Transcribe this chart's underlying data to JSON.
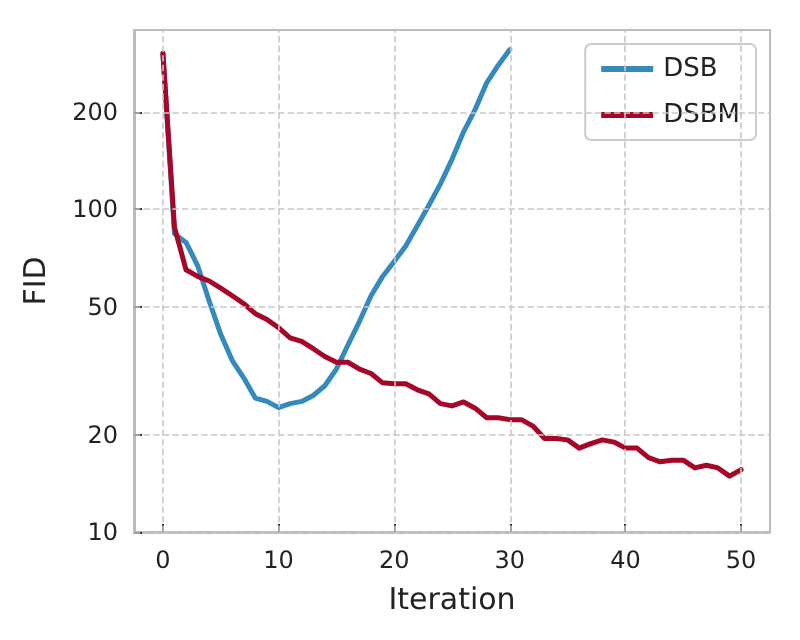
{
  "chart_data": {
    "type": "line",
    "xlabel": "Iteration",
    "ylabel": "FID",
    "log": "y",
    "grid": true,
    "legend": "top right",
    "line_style": "solid",
    "marker": "none",
    "xlim": [
      -2.5,
      52.5
    ],
    "xticks": [
      0,
      10,
      20,
      30,
      40,
      50
    ],
    "ylim": [
      10,
      360
    ],
    "yticks": [
      10,
      20,
      50,
      100,
      200
    ],
    "series": [
      {
        "name": "DSB",
        "color": "#348abd",
        "x": [
          0,
          1,
          2,
          3,
          4,
          5,
          6,
          7,
          8,
          9,
          10,
          11,
          12,
          13,
          14,
          15,
          16,
          17,
          18,
          19,
          20,
          21,
          22,
          23,
          24,
          25,
          26,
          27,
          28,
          29,
          30
        ],
        "values": [
          305,
          84,
          79,
          67,
          52,
          41,
          34,
          30,
          26,
          25.4,
          24.3,
          25,
          25.4,
          26.5,
          28.4,
          32,
          38,
          45,
          54,
          62,
          69,
          77,
          89,
          103,
          120,
          143,
          174,
          204,
          247,
          280,
          313
        ]
      },
      {
        "name": "DSBM",
        "color": "#a60628",
        "x": [
          0,
          1,
          2,
          3,
          4,
          5,
          6,
          7,
          8,
          9,
          10,
          11,
          12,
          13,
          14,
          15,
          16,
          17,
          18,
          19,
          20,
          21,
          22,
          23,
          24,
          25,
          26,
          27,
          28,
          29,
          30,
          31,
          32,
          33,
          34,
          35,
          36,
          37,
          38,
          39,
          40,
          41,
          42,
          43,
          44,
          45,
          46,
          47,
          48,
          49,
          50
        ],
        "values": [
          305,
          88,
          65,
          62,
          60,
          57,
          54,
          51,
          47.5,
          45.6,
          43,
          40,
          39,
          37,
          35,
          33.6,
          33.6,
          32,
          31,
          29,
          28.8,
          28.8,
          27.6,
          26.8,
          25,
          24.6,
          25.3,
          24.2,
          22.6,
          22.6,
          22.3,
          22.3,
          21.3,
          19.5,
          19.5,
          19.3,
          18.2,
          18.8,
          19.3,
          19,
          18.2,
          18.2,
          17,
          16.5,
          16.7,
          16.7,
          15.8,
          16.1,
          15.8,
          14.9,
          15.6
        ]
      }
    ]
  }
}
